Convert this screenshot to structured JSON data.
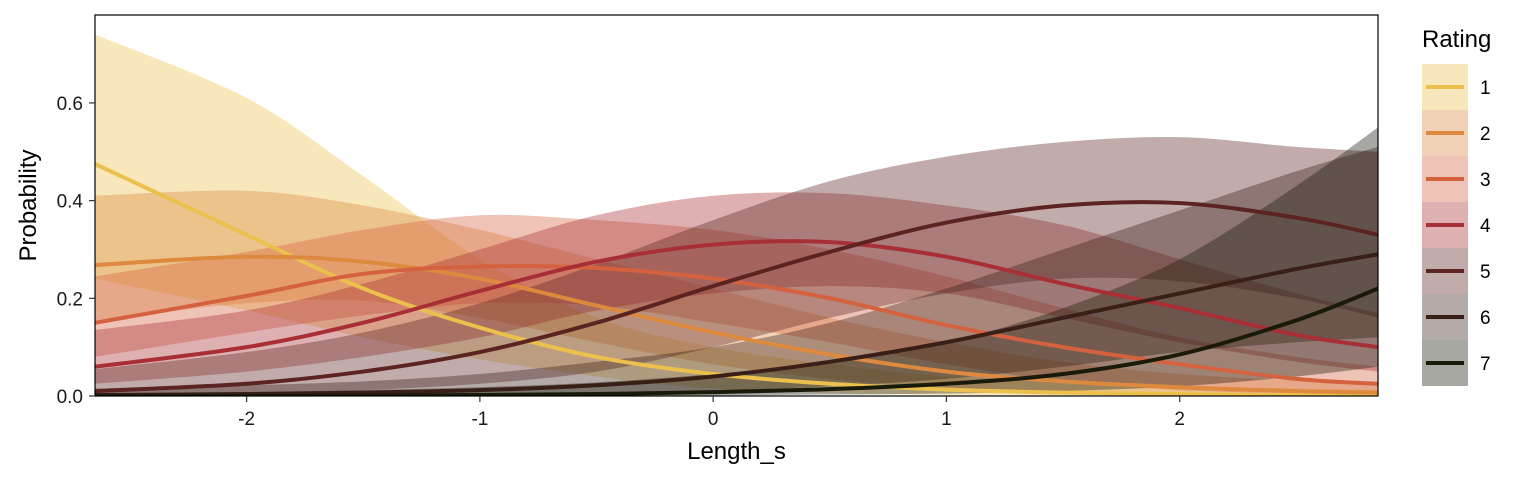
{
  "chart_data": {
    "type": "line",
    "xlabel": "Length_s",
    "ylabel": "Probability",
    "xlim": [
      -2.65,
      2.85
    ],
    "ylim": [
      0,
      0.78
    ],
    "x_ticks": [
      -2,
      -1,
      0,
      1,
      2
    ],
    "x_tick_labels": [
      "-2",
      "-1",
      "0",
      "1",
      "2"
    ],
    "y_ticks": [
      0.0,
      0.2,
      0.4,
      0.6
    ],
    "y_tick_labels": [
      "0.0",
      "0.2",
      "0.4",
      "0.6"
    ],
    "grid": false,
    "legend": {
      "title": "Rating",
      "position": "right"
    },
    "x": [
      -2.65,
      -2.0,
      -1.5,
      -1.0,
      -0.5,
      0.0,
      0.5,
      1.0,
      1.5,
      2.0,
      2.5,
      2.85
    ],
    "series": [
      {
        "name": "1",
        "color": "#EBC04D",
        "values": [
          0.475,
          0.33,
          0.22,
          0.14,
          0.08,
          0.045,
          0.025,
          0.013,
          0.007,
          0.004,
          0.002,
          0.001
        ],
        "lower": [
          0.24,
          0.175,
          0.12,
          0.075,
          0.04,
          0.015,
          0.006,
          0.002,
          0.001,
          0.0,
          0.0,
          0.0
        ],
        "upper": [
          0.74,
          0.61,
          0.45,
          0.28,
          0.16,
          0.1,
          0.065,
          0.04,
          0.03,
          0.02,
          0.015,
          0.012
        ]
      },
      {
        "name": "2",
        "color": "#DD8A3E",
        "values": [
          0.268,
          0.285,
          0.275,
          0.24,
          0.185,
          0.13,
          0.085,
          0.05,
          0.03,
          0.018,
          0.01,
          0.007
        ],
        "lower": [
          0.155,
          0.19,
          0.195,
          0.16,
          0.11,
          0.065,
          0.035,
          0.015,
          0.006,
          0.003,
          0.001,
          0.0
        ],
        "upper": [
          0.41,
          0.42,
          0.39,
          0.34,
          0.28,
          0.22,
          0.16,
          0.11,
          0.07,
          0.045,
          0.032,
          0.026
        ]
      },
      {
        "name": "3",
        "color": "#D4623E",
        "values": [
          0.15,
          0.205,
          0.25,
          0.265,
          0.262,
          0.24,
          0.2,
          0.145,
          0.1,
          0.065,
          0.035,
          0.025
        ],
        "lower": [
          0.08,
          0.13,
          0.165,
          0.19,
          0.185,
          0.15,
          0.11,
          0.065,
          0.03,
          0.012,
          0.005,
          0.002
        ],
        "upper": [
          0.245,
          0.295,
          0.34,
          0.37,
          0.36,
          0.34,
          0.3,
          0.245,
          0.18,
          0.12,
          0.08,
          0.06
        ]
      },
      {
        "name": "4",
        "color": "#A82F35",
        "values": [
          0.06,
          0.1,
          0.15,
          0.215,
          0.275,
          0.31,
          0.315,
          0.285,
          0.23,
          0.18,
          0.125,
          0.1
        ],
        "lower": [
          0.025,
          0.05,
          0.08,
          0.12,
          0.175,
          0.21,
          0.225,
          0.21,
          0.16,
          0.11,
          0.07,
          0.05
        ],
        "upper": [
          0.135,
          0.175,
          0.23,
          0.3,
          0.37,
          0.41,
          0.415,
          0.39,
          0.35,
          0.28,
          0.21,
          0.17
        ]
      },
      {
        "name": "5",
        "color": "#5C2421",
        "values": [
          0.01,
          0.025,
          0.05,
          0.09,
          0.15,
          0.225,
          0.295,
          0.355,
          0.39,
          0.395,
          0.365,
          0.33
        ],
        "lower": [
          0.002,
          0.005,
          0.012,
          0.025,
          0.05,
          0.1,
          0.16,
          0.21,
          0.24,
          0.235,
          0.2,
          0.16
        ],
        "upper": [
          0.055,
          0.09,
          0.13,
          0.19,
          0.27,
          0.36,
          0.44,
          0.49,
          0.52,
          0.53,
          0.51,
          0.5
        ]
      },
      {
        "name": "6",
        "color": "#3A1F18",
        "values": [
          0.002,
          0.004,
          0.007,
          0.012,
          0.022,
          0.04,
          0.07,
          0.11,
          0.16,
          0.21,
          0.26,
          0.29
        ],
        "lower": [
          0.0,
          0.0,
          0.001,
          0.002,
          0.005,
          0.01,
          0.02,
          0.035,
          0.06,
          0.09,
          0.11,
          0.12
        ],
        "upper": [
          0.015,
          0.022,
          0.03,
          0.045,
          0.07,
          0.1,
          0.15,
          0.22,
          0.3,
          0.38,
          0.46,
          0.51
        ]
      },
      {
        "name": "7",
        "color": "#1A1A0A",
        "values": [
          0.0,
          0.0,
          0.001,
          0.002,
          0.004,
          0.008,
          0.014,
          0.025,
          0.045,
          0.085,
          0.155,
          0.22
        ],
        "lower": [
          0.0,
          0.0,
          0.0,
          0.0,
          0.0,
          0.001,
          0.003,
          0.005,
          0.01,
          0.02,
          0.04,
          0.06
        ],
        "upper": [
          0.005,
          0.008,
          0.012,
          0.018,
          0.028,
          0.045,
          0.07,
          0.11,
          0.18,
          0.28,
          0.43,
          0.55
        ]
      }
    ]
  }
}
